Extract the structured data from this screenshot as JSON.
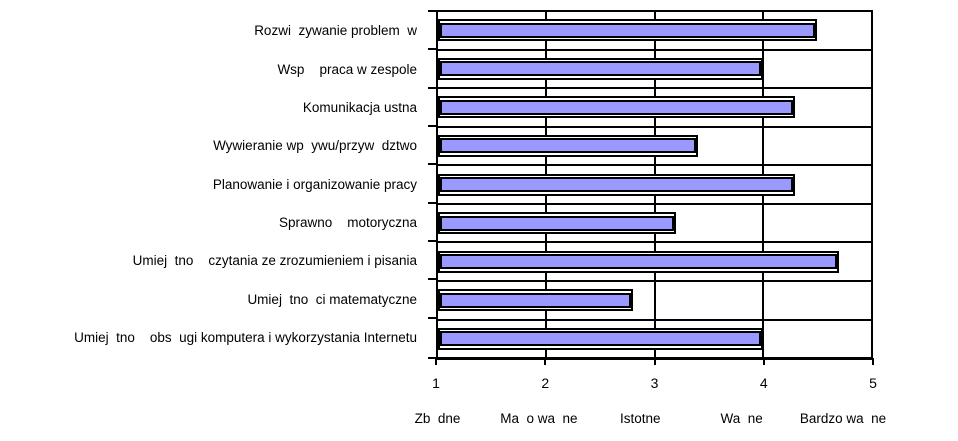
{
  "chart_data": {
    "type": "bar",
    "orientation": "horizontal",
    "title": "",
    "categories": [
      "Rozwi  zywanie problem  w",
      "Wsp    praca w zespole",
      "Komunikacja ustna",
      "Wywieranie wp  ywu/przyw  dztwo",
      "Planowanie i organizowanie pracy",
      "Sprawno    motoryczna",
      "Umiej  tno    czytania ze zrozumieniem i pisania",
      "Umiej  tno  ci matematyczne",
      "Umiej  tno    obs  ugi komputera i wykorzystania Internetu"
    ],
    "values": [
      4.5,
      4.0,
      4.3,
      3.4,
      4.3,
      3.2,
      4.7,
      2.8,
      4.0
    ],
    "xlabel": "",
    "ylabel": "",
    "xlim": [
      1,
      5
    ],
    "x_ticks": [
      1,
      2,
      3,
      4,
      5
    ],
    "x_tick_labels": [
      "1",
      "2",
      "3",
      "4",
      "5"
    ],
    "x_scale_labels": [
      "Zb  dne",
      "Ma  o wa  ne",
      "Istotne",
      "Wa  ne",
      "Bardzo wa  ne"
    ],
    "grid": "vertical major gridlines at values 2, 3, 4",
    "legend": null
  },
  "colors": {
    "bar_fill": "#9999FF",
    "bar_border": "#000000",
    "axis_line": "#000000",
    "text": "#000000",
    "background": "#FFFFFF"
  }
}
